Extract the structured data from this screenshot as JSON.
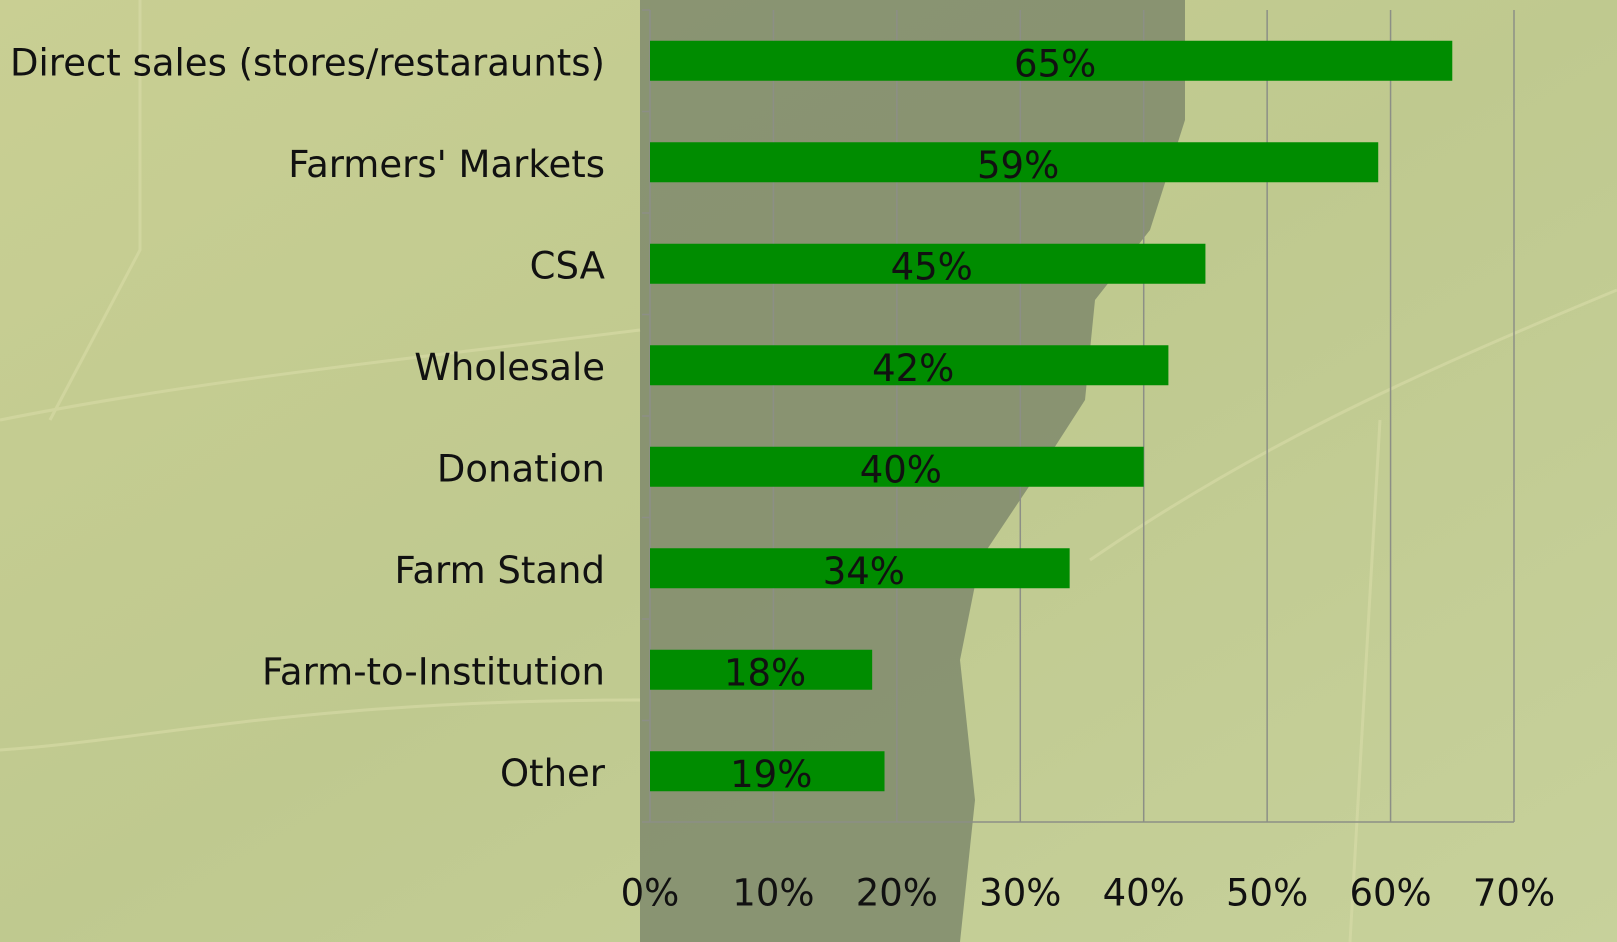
{
  "chart_data": {
    "type": "bar",
    "orientation": "horizontal",
    "categories": [
      "Direct sales (stores/restaraunts)",
      "Farmers' Markets",
      "CSA",
      "Wholesale",
      "Donation",
      "Farm Stand",
      "Farm-to-Institution",
      "Other"
    ],
    "values": [
      65,
      59,
      45,
      42,
      40,
      34,
      18,
      19
    ],
    "value_labels": [
      "65%",
      "59%",
      "45%",
      "42%",
      "40%",
      "34%",
      "18%",
      "19%"
    ],
    "color": "#008c00",
    "xlim": [
      0,
      70
    ],
    "xticks": [
      {
        "value": 0,
        "label": "0%"
      },
      {
        "value": 10,
        "label": "10%"
      },
      {
        "value": 20,
        "label": "20%"
      },
      {
        "value": 30,
        "label": "30%"
      },
      {
        "value": 40,
        "label": "40%"
      },
      {
        "value": 50,
        "label": "50%"
      },
      {
        "value": 60,
        "label": "60%"
      },
      {
        "value": 70,
        "label": "70%"
      }
    ],
    "grid": true
  }
}
